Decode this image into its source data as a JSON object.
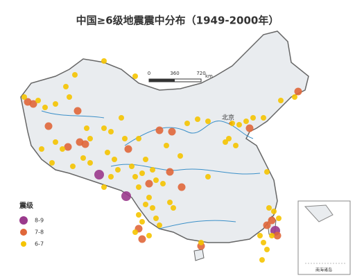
{
  "title": "中国≥6级地震震中分布（1949-2000年）",
  "scale_bar": {
    "labels": [
      "0",
      "360",
      "720"
    ],
    "unit": "km"
  },
  "cities": [
    "北京"
  ],
  "legend": {
    "title": "震级",
    "items": [
      "8-9",
      "7-8",
      "6-7"
    ]
  },
  "inset": {
    "label": "南海诸岛"
  }
}
